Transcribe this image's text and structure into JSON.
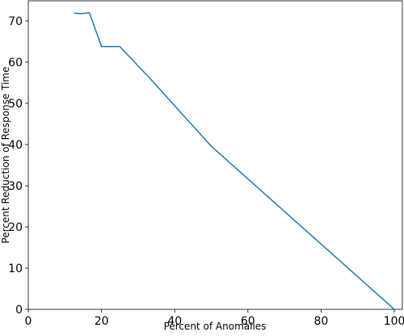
{
  "chart_data": {
    "type": "line",
    "xlabel": "Percent of Anomalies",
    "ylabel": "Percent Reduction of Response Time",
    "x": [
      12.5,
      14.3,
      16.7,
      20,
      25,
      33.3,
      50,
      100
    ],
    "series": [
      {
        "color": "#1f77b4",
        "values": [
          71.9,
          71.8,
          72.0,
          63.8,
          63.8,
          56.0,
          39.6,
          0
        ]
      }
    ],
    "xlim": [
      0,
      102.2
    ],
    "ylim": [
      0,
      74.9
    ],
    "xticks": [
      0,
      20,
      40,
      60,
      80,
      100
    ],
    "yticks": [
      0,
      10,
      20,
      30,
      40,
      50,
      60,
      70
    ]
  }
}
